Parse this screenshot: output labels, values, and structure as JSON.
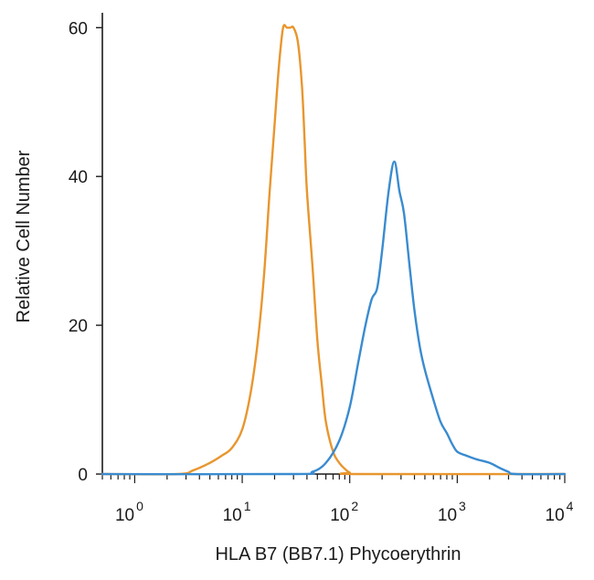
{
  "chart_data": {
    "type": "line",
    "title": "",
    "xlabel": "HLA B7 (BB7.1) Phycoerythrin",
    "ylabel": "Relative Cell Number",
    "x_scale": "log",
    "xlim": [
      0.5,
      10000
    ],
    "ylim": [
      0,
      62
    ],
    "grid": false,
    "legend": "none",
    "x_ticks": [
      {
        "value": 1,
        "base": "10",
        "exp": "0"
      },
      {
        "value": 10,
        "base": "10",
        "exp": "1"
      },
      {
        "value": 100,
        "base": "10",
        "exp": "2"
      },
      {
        "value": 1000,
        "base": "10",
        "exp": "3"
      },
      {
        "value": 10000,
        "base": "10",
        "exp": "4"
      }
    ],
    "y_ticks": [
      {
        "value": 0,
        "label": "0"
      },
      {
        "value": 20,
        "label": "20"
      },
      {
        "value": 40,
        "label": "40"
      },
      {
        "value": 60,
        "label": "60"
      }
    ],
    "series": [
      {
        "color": "#E8962E",
        "x": [
          0.5,
          2.5,
          3.5,
          5,
          6.5,
          8,
          10,
          12,
          14,
          16,
          18,
          20,
          22,
          24,
          26,
          28,
          30,
          33,
          36,
          38,
          40,
          45,
          50,
          55,
          60,
          70,
          80,
          90,
          100,
          120,
          10000
        ],
        "y": [
          0,
          0,
          0.5,
          1.5,
          2.5,
          3.5,
          6,
          11,
          18,
          27,
          38,
          47,
          55,
          60,
          60,
          60,
          60,
          58,
          52,
          45,
          38,
          28,
          18,
          12,
          7,
          3,
          1.5,
          0.7,
          0.2,
          0,
          0
        ]
      },
      {
        "color": "#3A8BD0",
        "x": [
          0.5,
          30,
          45,
          60,
          80,
          100,
          120,
          140,
          160,
          180,
          200,
          230,
          260,
          290,
          320,
          360,
          400,
          450,
          500,
          600,
          700,
          800,
          900,
          1000,
          1200,
          1500,
          2000,
          2500,
          3000,
          3500,
          10000
        ],
        "y": [
          0,
          0,
          0.3,
          1.5,
          4.5,
          9,
          15,
          20,
          23.5,
          25,
          30,
          38,
          42,
          38,
          35,
          28,
          22,
          17,
          14,
          10,
          7,
          5.5,
          4,
          3,
          2.5,
          2,
          1.5,
          0.8,
          0.3,
          0,
          0
        ]
      }
    ]
  }
}
